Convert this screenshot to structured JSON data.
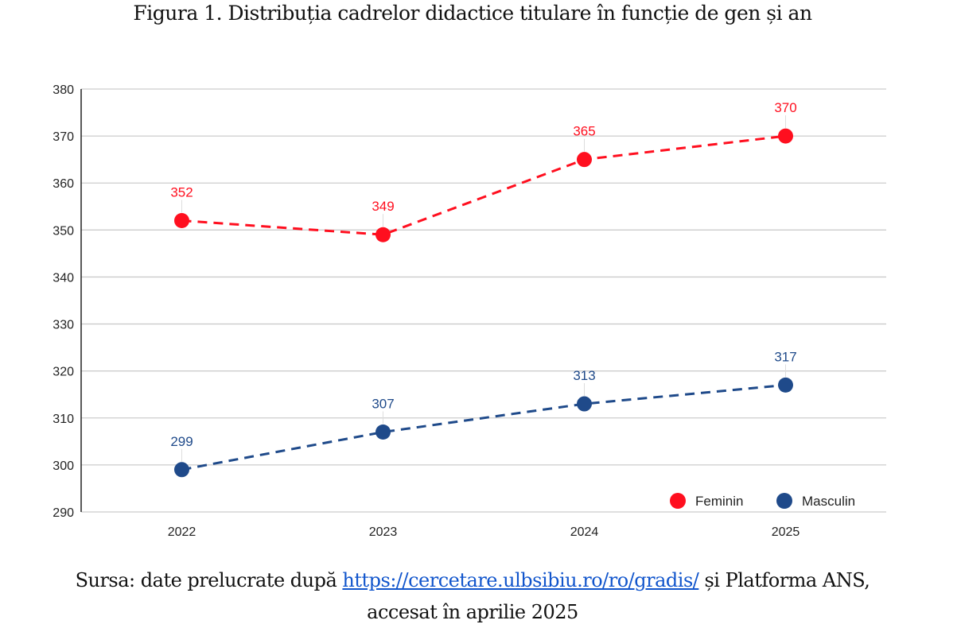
{
  "figure": {
    "title": "Figura 1. Distribuția cadrelor didactice titulare în funcție de gen și an",
    "source_prefix": "Sursa: date prelucrate după ",
    "source_link": "https://cercetare.ulbsibiu.ro/ro/gradis/",
    "source_suffix": " și Platforma ANS,",
    "source_line2": "accesat în aprilie 2025"
  },
  "chart_data": {
    "type": "line",
    "title": "Figura 1. Distribuția cadrelor didactice titulare în funcție de gen și an",
    "xlabel": "",
    "ylabel": "",
    "categories": [
      "2022",
      "2023",
      "2024",
      "2025"
    ],
    "ylim": [
      290,
      380
    ],
    "yticks": [
      290,
      300,
      310,
      320,
      330,
      340,
      350,
      360,
      370,
      380
    ],
    "grid": true,
    "legend_position": "bottom-right",
    "line_style": "dashed",
    "series": [
      {
        "name": "Feminin",
        "color": "#ff0f1f",
        "values": [
          352,
          349,
          365,
          370
        ]
      },
      {
        "name": "Masculin",
        "color": "#1f4a8a",
        "values": [
          299,
          307,
          313,
          317
        ]
      }
    ]
  }
}
